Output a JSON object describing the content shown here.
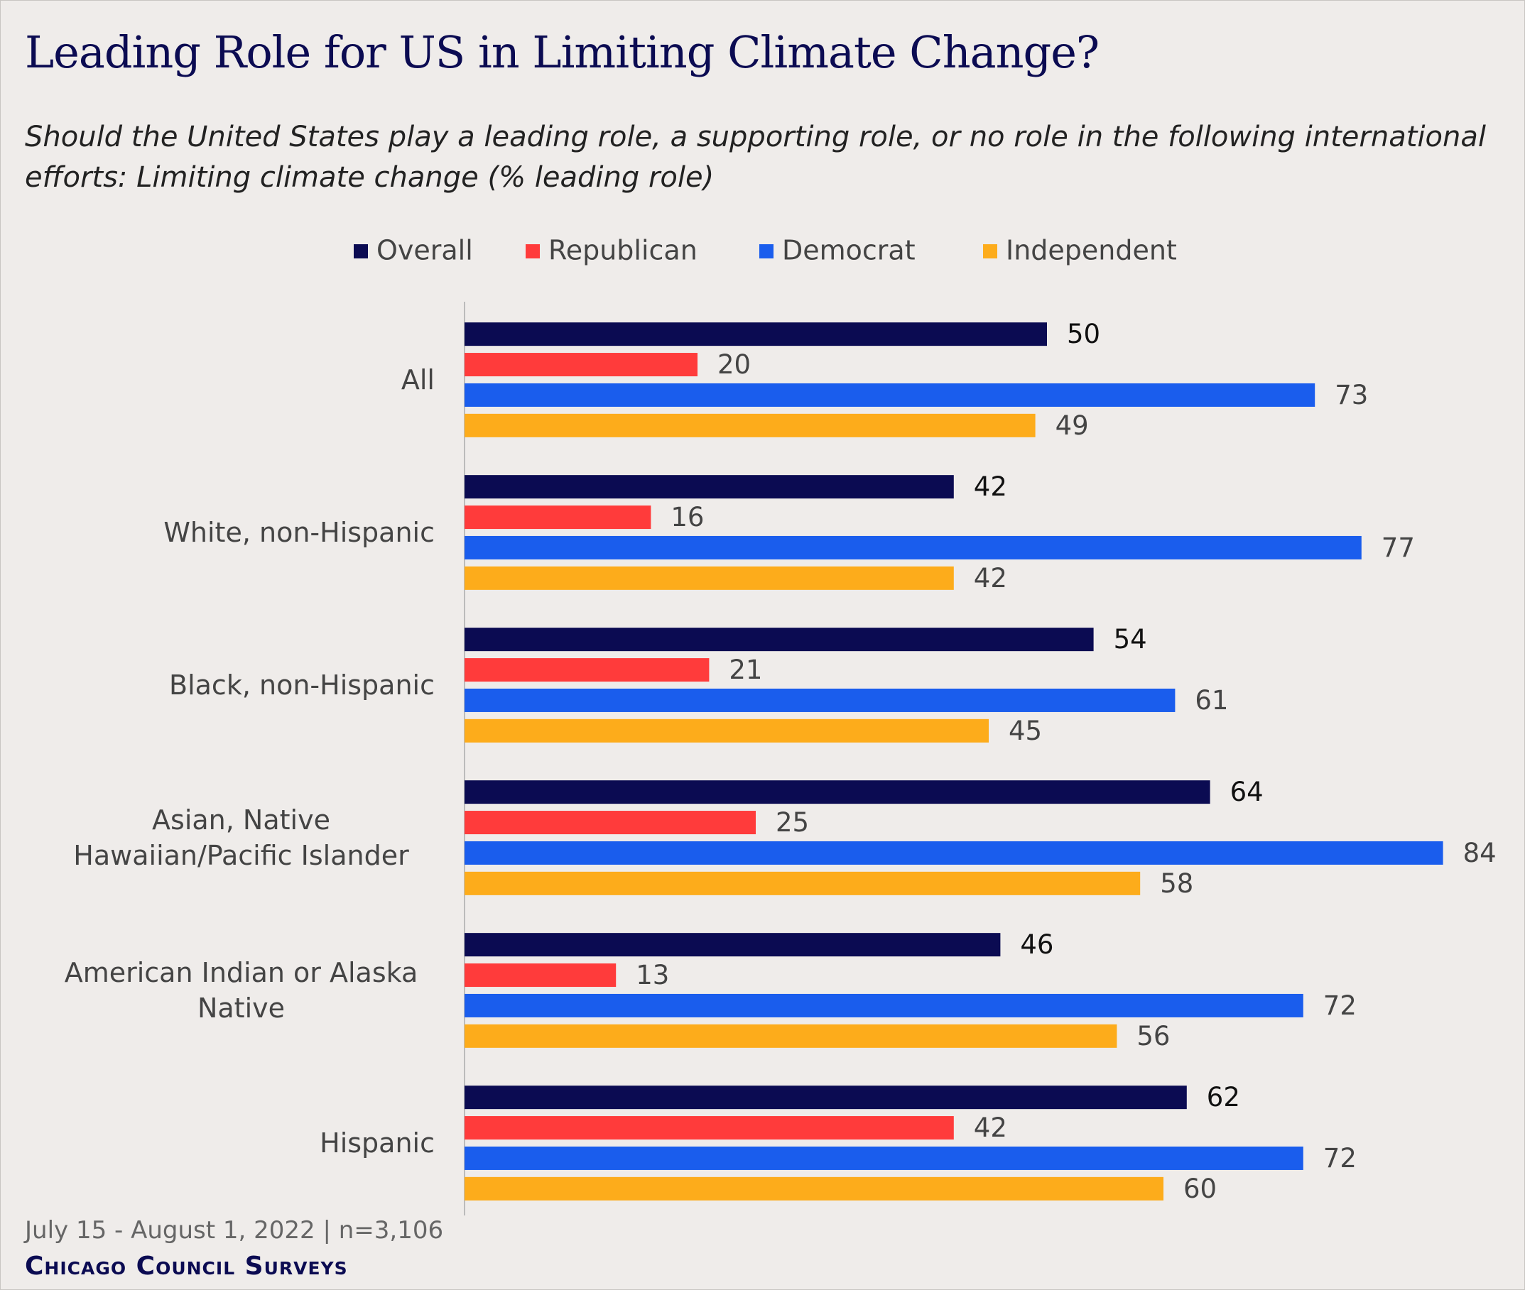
{
  "chart_data": {
    "type": "bar",
    "orientation": "horizontal",
    "title": "Leading Role for US in Limiting Climate Change?",
    "subtitle": "Should the United States play a leading role, a supporting role, or no role in the following international efforts: Limiting climate change (% leading role)",
    "categories": [
      "All",
      "White, non-Hispanic",
      "Black, non-Hispanic",
      "Asian, Native Hawaiian/Pacific Islander",
      "American Indian or Alaska Native",
      "Hispanic"
    ],
    "series": [
      {
        "name": "Overall",
        "color": "#0b0b52",
        "values": [
          50,
          42,
          54,
          64,
          46,
          62
        ]
      },
      {
        "name": "Republican",
        "color": "#ff3b3b",
        "values": [
          20,
          16,
          21,
          25,
          13,
          42
        ]
      },
      {
        "name": "Democrat",
        "color": "#1a5ded",
        "values": [
          73,
          77,
          61,
          84,
          72,
          72
        ]
      },
      {
        "name": "Independent",
        "color": "#fdac1b",
        "values": [
          49,
          42,
          45,
          58,
          56,
          60
        ]
      }
    ],
    "xlim": [
      0,
      90
    ],
    "legend": "top",
    "note": "July 15 - August 1, 2022 | n=3,106",
    "source": "Chicago Council Surveys"
  }
}
